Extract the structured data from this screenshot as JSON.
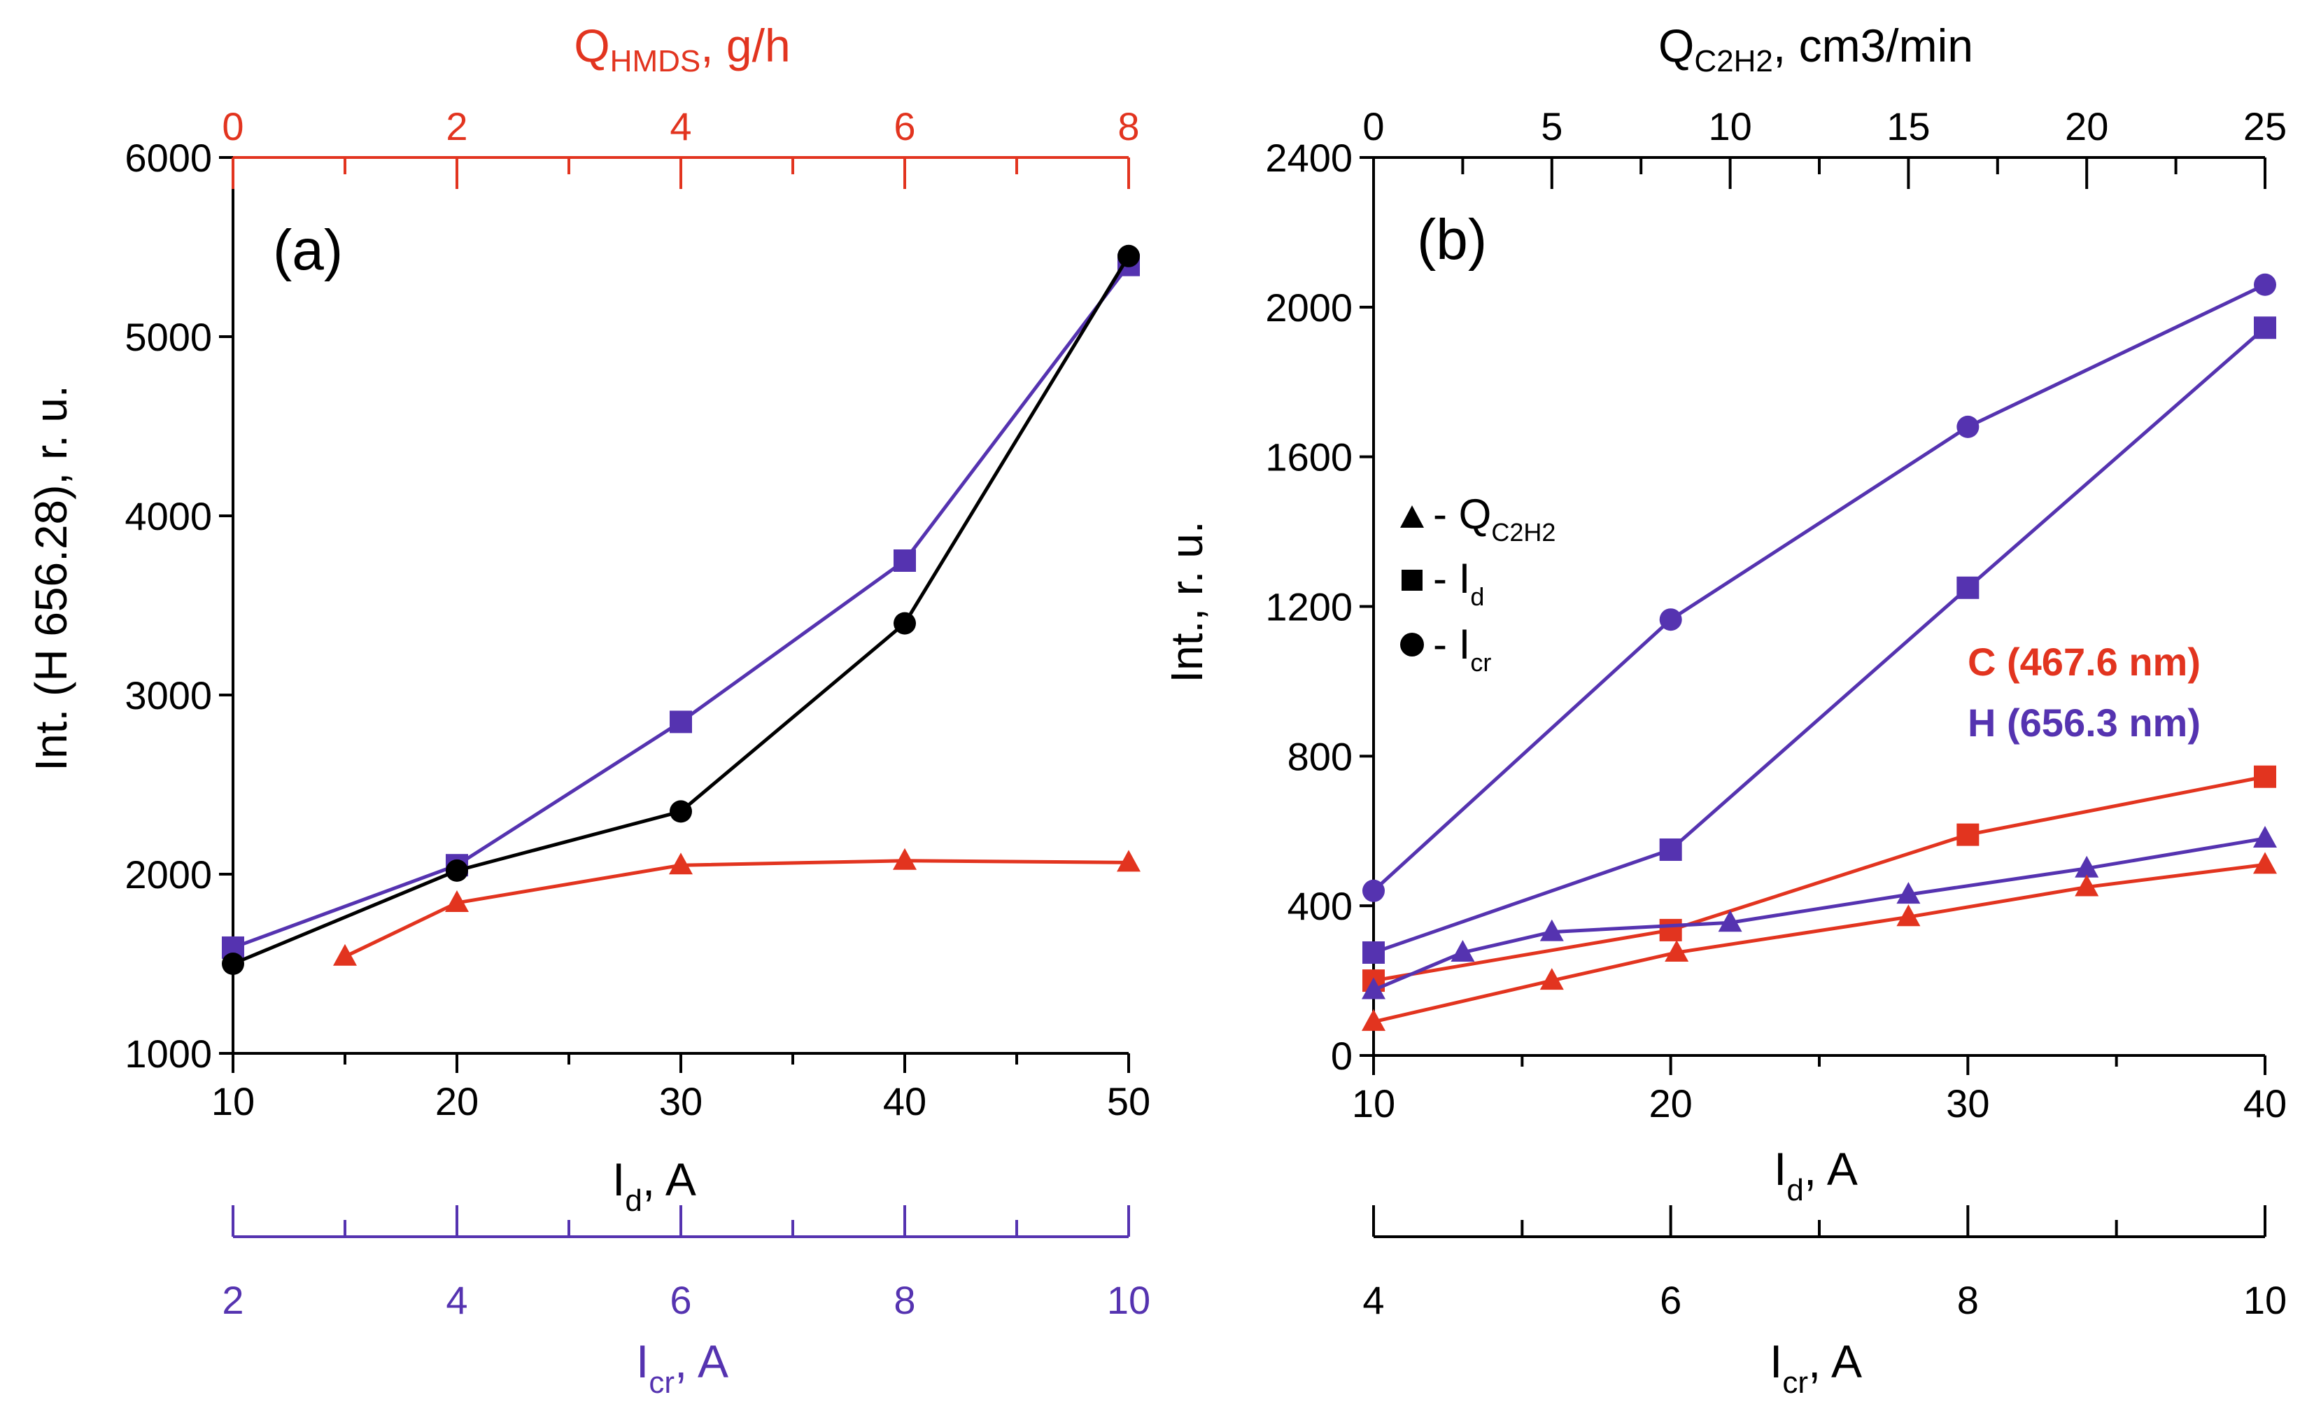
{
  "colors": {
    "red": "#e2341f",
    "blue": "#5533b0",
    "black": "#000000"
  },
  "panel_a": {
    "label": "(a)",
    "ylabel": "Int. (H 656.28), r. u.",
    "xlabel_main": "I",
    "xlabel_sub": "d",
    "xlabel_tail": ", A",
    "top_label_main": "Q",
    "top_label_sub": "HMDS",
    "top_label_tail": ", g/h",
    "bottom2_label_main": "I",
    "bottom2_label_sub": "cr",
    "bottom2_label_tail": ", A"
  },
  "panel_b": {
    "label": "(b)",
    "ylabel": "Int., r. u.",
    "xlabel_main": "I",
    "xlabel_sub": "d",
    "xlabel_tail": ", A",
    "top_label_main": "Q",
    "top_label_sub": "C2H2",
    "top_label_tail": ", cm3/min",
    "bottom2_label_main": "I",
    "bottom2_label_sub": "cr",
    "bottom2_label_tail": ", A",
    "legend": [
      {
        "marker": "triangle",
        "prefix": "- Q",
        "sub": "C2H2"
      },
      {
        "marker": "square",
        "prefix": "- I",
        "sub": "d"
      },
      {
        "marker": "circle",
        "prefix": "- I",
        "sub": "cr"
      }
    ],
    "annotation_c": "C (467.6 nm)",
    "annotation_h": "H (656.3 nm)"
  },
  "chart_data": [
    {
      "type": "line",
      "title": "(a)",
      "ylabel": "Int. (H 656.28), r. u.",
      "ylim": [
        1000,
        6000
      ],
      "yticks": [
        1000,
        2000,
        3000,
        4000,
        5000,
        6000
      ],
      "axes": {
        "bottom": {
          "label": "Id, A",
          "range": [
            10,
            50
          ],
          "ticks": [
            10,
            20,
            30,
            40,
            50
          ],
          "minor": [
            15,
            25,
            35,
            45
          ]
        },
        "top": {
          "label": "QHMDS, g/h",
          "range": [
            0,
            8
          ],
          "ticks": [
            0,
            2,
            4,
            6,
            8
          ],
          "minor": [
            1,
            3,
            5,
            7
          ]
        },
        "bottom2": {
          "label": "Icr, A",
          "range": [
            2,
            10
          ],
          "ticks": [
            2,
            4,
            6,
            8,
            10
          ],
          "minor": [
            3,
            5,
            7,
            9
          ]
        }
      },
      "series": [
        {
          "name": "Id",
          "axis": "bottom",
          "marker": "square",
          "color": "#5533b0",
          "x": [
            10,
            20,
            30,
            40,
            50
          ],
          "y": [
            1590,
            2050,
            2850,
            3750,
            5400
          ]
        },
        {
          "name": "Icr",
          "axis": "bottom2",
          "marker": "circle",
          "color": "#000000",
          "x": [
            2,
            4,
            6,
            8,
            10
          ],
          "y": [
            1500,
            2020,
            2350,
            3400,
            5450
          ]
        },
        {
          "name": "QHMDS",
          "axis": "top",
          "marker": "triangle",
          "color": "#e2341f",
          "x": [
            1,
            2,
            4,
            6,
            8
          ],
          "y": [
            1540,
            1840,
            2050,
            2075,
            2065
          ]
        }
      ]
    },
    {
      "type": "line",
      "title": "(b)",
      "ylabel": "Int., r. u.",
      "ylim": [
        0,
        2400
      ],
      "yticks": [
        0,
        400,
        800,
        1200,
        1600,
        2000,
        2400
      ],
      "axes": {
        "bottom": {
          "label": "Id, A",
          "range": [
            10,
            40
          ],
          "ticks": [
            10,
            20,
            30,
            40
          ],
          "minor": [
            15,
            25,
            35
          ]
        },
        "top": {
          "label": "QC2H2, cm3/min",
          "range": [
            0,
            25
          ],
          "ticks": [
            0,
            5,
            10,
            15,
            20,
            25
          ],
          "minor": [
            2.5,
            7.5,
            12.5,
            17.5,
            22.5
          ]
        },
        "bottom2": {
          "label": "Icr, A",
          "range": [
            4,
            10
          ],
          "ticks": [
            4,
            6,
            8,
            10
          ],
          "minor": [
            5,
            7,
            9
          ]
        }
      },
      "series": [
        {
          "name": "H Icr",
          "axis": "bottom2",
          "marker": "circle",
          "color": "#5533b0",
          "x": [
            4,
            6,
            8,
            10
          ],
          "y": [
            440,
            1165,
            1680,
            2060
          ]
        },
        {
          "name": "H Id",
          "axis": "bottom",
          "marker": "square",
          "color": "#5533b0",
          "x": [
            10,
            20,
            30,
            40
          ],
          "y": [
            275,
            550,
            1250,
            1945
          ]
        },
        {
          "name": "C Id",
          "axis": "bottom",
          "marker": "square",
          "color": "#e2341f",
          "x": [
            10,
            20,
            30,
            40
          ],
          "y": [
            200,
            335,
            590,
            745
          ]
        },
        {
          "name": "H QC2H2",
          "axis": "top",
          "marker": "triangle",
          "color": "#5533b0",
          "x": [
            0,
            2.5,
            5,
            10,
            15,
            20,
            25
          ],
          "y": [
            175,
            275,
            330,
            355,
            430,
            500,
            580
          ]
        },
        {
          "name": "C QC2H2",
          "axis": "top",
          "marker": "triangle",
          "color": "#e2341f",
          "x": [
            0,
            5,
            8.5,
            15,
            20,
            25
          ],
          "y": [
            90,
            200,
            275,
            370,
            450,
            510
          ]
        }
      ]
    }
  ]
}
